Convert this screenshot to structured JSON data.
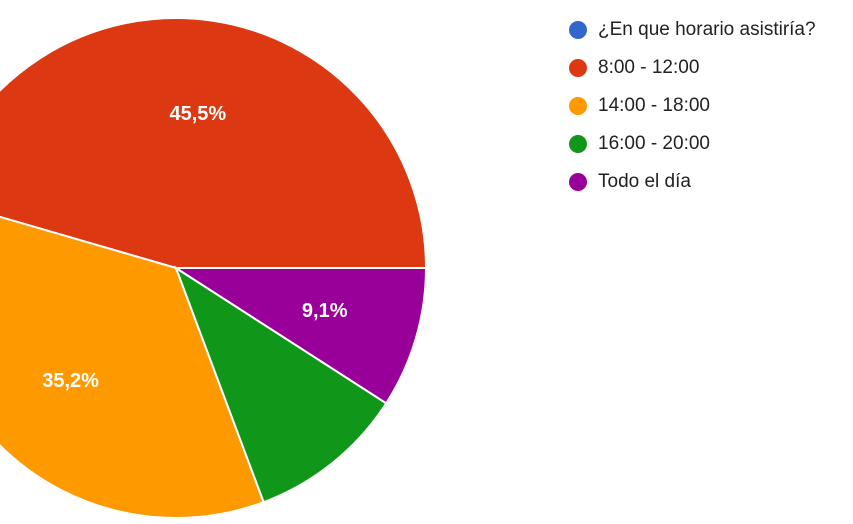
{
  "chart_data": {
    "type": "pie",
    "categories": [
      "¿En que horario asistiría?",
      "8:00 - 12:00",
      "14:00 - 18:00",
      "16:00 - 20:00",
      "Todo el día"
    ],
    "values": [
      0,
      45.5,
      35.2,
      10.2,
      9.1
    ],
    "value_labels": [
      "",
      "45,5%",
      "35,2%",
      "",
      "9,1%"
    ],
    "colors": [
      "#3366cc",
      "#dc3912",
      "#ff9900",
      "#109618",
      "#990099"
    ],
    "legend_position": "right",
    "start_angle_deg": 0,
    "direction": "counterclockwise"
  }
}
